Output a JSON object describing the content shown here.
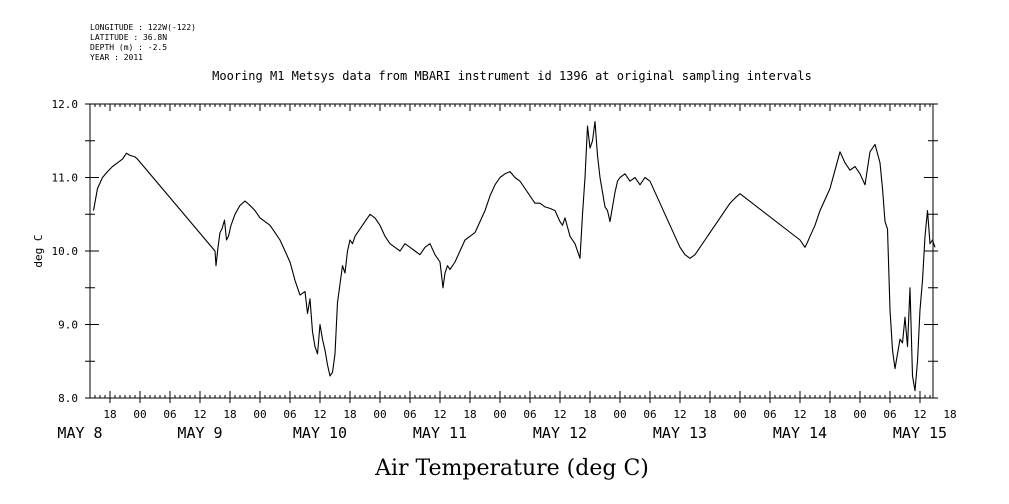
{
  "header": {
    "longitude": "LONGITUDE : 122W(-122)",
    "latitude": "LATITUDE : 36.8N",
    "depth": "DEPTH (m) : -2.5",
    "year": "YEAR : 2011"
  },
  "chart_data": {
    "type": "line",
    "title": "Mooring M1 Metsys data from MBARI instrument id 1396 at original sampling intervals",
    "xlabel": "Air Temperature (deg C)",
    "ylabel": "deg C",
    "ylim": [
      8.0,
      12.0
    ],
    "y_ticks": [
      "8.0",
      "9.0",
      "10.0",
      "11.0",
      "12.0"
    ],
    "x_unit": "hours since May 8 00:00, 2011",
    "xlim": [
      14,
      183
    ],
    "hour_ticks": [
      "18",
      "00",
      "06",
      "12",
      "18",
      "00",
      "06",
      "12",
      "18",
      "00",
      "06",
      "12",
      "18",
      "00",
      "06",
      "12",
      "18",
      "00",
      "06",
      "12",
      "18",
      "00",
      "06",
      "12",
      "18",
      "00",
      "06",
      "12",
      "18"
    ],
    "day_labels": [
      {
        "label": "MAY  8",
        "hour": 12
      },
      {
        "label": "MAY  9",
        "hour": 36
      },
      {
        "label": "MAY 10",
        "hour": 60
      },
      {
        "label": "MAY 11",
        "hour": 84
      },
      {
        "label": "MAY 12",
        "hour": 108
      },
      {
        "label": "MAY 13",
        "hour": 132
      },
      {
        "label": "MAY 14",
        "hour": 156
      },
      {
        "label": "MAY 15",
        "hour": 180
      }
    ],
    "series": [
      {
        "name": "",
        "x": [
          14.7,
          15.5,
          16.5,
          17.5,
          18.5,
          19.5,
          20.5,
          21.3,
          22.0,
          23.0,
          23.5,
          39.0,
          39.2,
          39.6,
          40.0,
          40.4,
          40.9,
          41.3,
          41.7,
          42.2,
          43.0,
          44.0,
          45.0,
          46.0,
          47.0,
          48.0,
          49.0,
          50.0,
          51.0,
          52.0,
          53.0,
          54.0,
          55.0,
          56.0,
          57.0,
          57.5,
          58.0,
          58.5,
          59.0,
          59.5,
          60.0,
          60.5,
          61.0,
          61.5,
          62.0,
          62.5,
          63.0,
          63.5,
          64.0,
          64.5,
          65.0,
          65.5,
          66.0,
          66.5,
          67.0,
          67.5,
          68.0,
          69.0,
          70.0,
          71.0,
          72.0,
          73.0,
          74.0,
          75.0,
          76.0,
          77.0,
          78.0,
          79.0,
          80.0,
          81.0,
          82.0,
          83.0,
          84.0,
          84.6,
          85.0,
          85.5,
          86.0,
          87.0,
          88.0,
          89.0,
          90.0,
          91.0,
          92.0,
          93.0,
          94.0,
          95.0,
          96.0,
          97.0,
          98.0,
          99.0,
          100.0,
          101.0,
          102.0,
          103.0,
          104.0,
          105.0,
          106.0,
          107.0,
          108.0,
          108.5,
          109.0,
          109.6,
          110.0,
          111.0,
          112.0,
          112.5,
          113.0,
          113.5,
          114.0,
          114.5,
          115.0,
          115.5,
          116.0,
          116.5,
          117.0,
          117.5,
          118.0,
          118.5,
          119.0,
          119.5,
          120.0,
          121.0,
          122.0,
          123.0,
          124.0,
          125.0,
          126.0,
          127.0,
          128.0,
          129.0,
          130.0,
          131.0,
          132.0,
          133.0,
          134.0,
          135.0,
          136.0,
          137.0,
          138.0,
          139.0,
          140.0,
          141.0,
          142.0,
          143.0,
          144.0,
          156.0,
          156.5,
          157.0,
          157.5,
          158.0,
          159.0,
          160.0,
          161.0,
          162.0,
          163.0,
          164.0,
          165.0,
          166.0,
          167.0,
          167.5,
          168.0,
          169.0,
          170.0,
          171.0,
          172.0,
          172.5,
          173.0,
          173.5,
          174.0,
          174.5,
          175.0,
          175.5,
          176.0,
          176.5,
          177.0,
          177.5,
          178.0,
          178.5,
          179.0,
          179.5,
          180.0,
          180.5,
          181.0,
          181.5,
          182.0,
          182.5,
          183.0
        ],
        "y": [
          10.55,
          10.85,
          11.0,
          11.08,
          11.15,
          11.2,
          11.25,
          11.33,
          11.3,
          11.28,
          11.25,
          10.0,
          9.8,
          10.05,
          10.25,
          10.3,
          10.42,
          10.15,
          10.2,
          10.35,
          10.5,
          10.62,
          10.68,
          10.62,
          10.55,
          10.45,
          10.4,
          10.35,
          10.25,
          10.15,
          10.0,
          9.85,
          9.6,
          9.4,
          9.45,
          9.15,
          9.35,
          8.9,
          8.7,
          8.6,
          9.0,
          8.8,
          8.65,
          8.45,
          8.3,
          8.35,
          8.6,
          9.3,
          9.55,
          9.8,
          9.7,
          10.0,
          10.15,
          10.1,
          10.2,
          10.25,
          10.3,
          10.4,
          10.5,
          10.45,
          10.35,
          10.2,
          10.1,
          10.05,
          10.0,
          10.1,
          10.05,
          10.0,
          9.95,
          10.05,
          10.1,
          9.95,
          9.85,
          9.5,
          9.7,
          9.8,
          9.75,
          9.85,
          10.0,
          10.15,
          10.2,
          10.25,
          10.4,
          10.55,
          10.75,
          10.9,
          11.0,
          11.05,
          11.08,
          11.0,
          10.95,
          10.85,
          10.75,
          10.65,
          10.65,
          10.6,
          10.58,
          10.55,
          10.4,
          10.35,
          10.45,
          10.3,
          10.2,
          10.1,
          9.9,
          10.5,
          11.0,
          11.7,
          11.4,
          11.5,
          11.76,
          11.3,
          11.0,
          10.8,
          10.6,
          10.55,
          10.4,
          10.6,
          10.8,
          10.95,
          11.0,
          11.05,
          10.95,
          11.0,
          10.9,
          11.0,
          10.95,
          10.8,
          10.65,
          10.5,
          10.35,
          10.2,
          10.05,
          9.95,
          9.9,
          9.95,
          10.05,
          10.15,
          10.25,
          10.35,
          10.45,
          10.55,
          10.65,
          10.72,
          10.78,
          10.15,
          10.1,
          10.05,
          10.12,
          10.2,
          10.35,
          10.55,
          10.7,
          10.85,
          11.1,
          11.35,
          11.2,
          11.1,
          11.15,
          11.1,
          11.05,
          10.9,
          11.35,
          11.45,
          11.2,
          10.85,
          10.4,
          10.3,
          9.2,
          8.65,
          8.4,
          8.6,
          8.8,
          8.75,
          9.1,
          8.7,
          9.5,
          8.3,
          8.1,
          8.5,
          9.2,
          9.6,
          10.2,
          10.55,
          10.1,
          10.15,
          10.05
        ]
      }
    ]
  }
}
